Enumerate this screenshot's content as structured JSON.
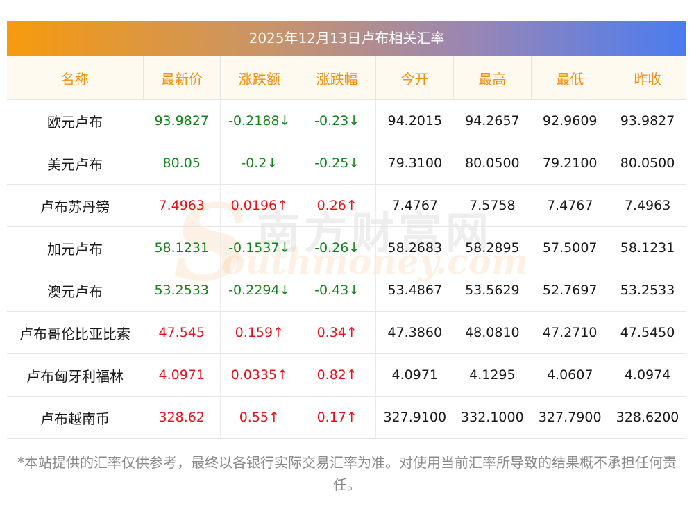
{
  "title": "2025年12月13日卢布相关汇率",
  "headers": [
    "名称",
    "最新价",
    "涨跌额",
    "涨跌幅",
    "今开",
    "最高",
    "最低",
    "昨收"
  ],
  "rows": [
    {
      "name": "欧元卢布",
      "latest": "93.9827",
      "change": "-0.2188↓",
      "pct": "-0.23↓",
      "open": "94.2015",
      "high": "94.2657",
      "low": "92.9609",
      "prev": "93.9827",
      "dir": "down"
    },
    {
      "name": "美元卢布",
      "latest": "80.05",
      "change": "-0.2↓",
      "pct": "-0.25↓",
      "open": "79.3100",
      "high": "80.0500",
      "low": "79.2100",
      "prev": "80.0500",
      "dir": "down"
    },
    {
      "name": "卢布苏丹镑",
      "latest": "7.4963",
      "change": "0.0196↑",
      "pct": "0.26↑",
      "open": "7.4767",
      "high": "7.5758",
      "low": "7.4767",
      "prev": "7.4963",
      "dir": "up"
    },
    {
      "name": "加元卢布",
      "latest": "58.1231",
      "change": "-0.1537↓",
      "pct": "-0.26↓",
      "open": "58.2683",
      "high": "58.2895",
      "low": "57.5007",
      "prev": "58.1231",
      "dir": "down"
    },
    {
      "name": "澳元卢布",
      "latest": "53.2533",
      "change": "-0.2294↓",
      "pct": "-0.43↓",
      "open": "53.4867",
      "high": "53.5629",
      "low": "52.7697",
      "prev": "53.2533",
      "dir": "down"
    },
    {
      "name": "卢布哥伦比亚比索",
      "latest": "47.545",
      "change": "0.159↑",
      "pct": "0.34↑",
      "open": "47.3860",
      "high": "48.0810",
      "low": "47.2710",
      "prev": "47.5450",
      "dir": "up"
    },
    {
      "name": "卢布匈牙利福林",
      "latest": "4.0971",
      "change": "0.0335↑",
      "pct": "0.82↑",
      "open": "4.0971",
      "high": "4.1295",
      "low": "4.0607",
      "prev": "4.0974",
      "dir": "up"
    },
    {
      "name": "卢布越南币",
      "latest": "328.62",
      "change": "0.55↑",
      "pct": "0.17↑",
      "open": "327.9100",
      "high": "332.1000",
      "low": "327.7900",
      "prev": "328.6200",
      "dir": "up"
    }
  ],
  "watermark": {
    "cn": "南方财富网",
    "en": "outhmoney.com",
    "s": "S"
  },
  "note": "*本站提供的汇率仅供参考，最终以各银行实际交易汇率为准。对使用当前汇率所导致的结果概不承担任何责任。",
  "colors": {
    "up": "#e8101a",
    "down": "#14831c",
    "header_text": "#f09010",
    "gradient_start": "#f79a0c",
    "gradient_end": "#4a7cf0"
  }
}
